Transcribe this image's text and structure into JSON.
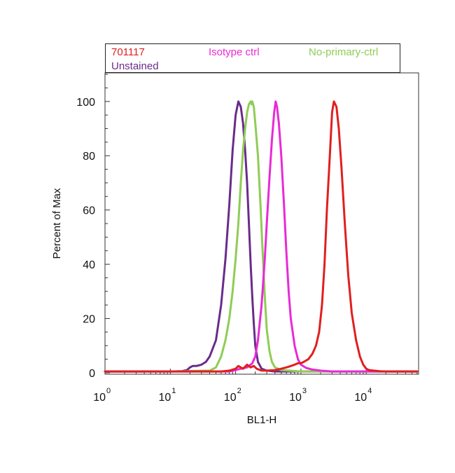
{
  "chart_data": {
    "type": "line",
    "title": "",
    "xlabel": "BL1-H",
    "ylabel": "Percent of Max",
    "x_scale": "log",
    "xlim": [
      1,
      60000
    ],
    "ylim": [
      0,
      110
    ],
    "grid": false,
    "legend_placement": "top",
    "x_ticks": [
      {
        "value": 1,
        "base": "10",
        "exp": "0"
      },
      {
        "value": 10,
        "base": "10",
        "exp": "1"
      },
      {
        "value": 100,
        "base": "10",
        "exp": "2"
      },
      {
        "value": 1000,
        "base": "10",
        "exp": "3"
      },
      {
        "value": 10000,
        "base": "10",
        "exp": "4"
      }
    ],
    "y_ticks": [
      {
        "value": 0,
        "label": "0"
      },
      {
        "value": 20,
        "label": "20"
      },
      {
        "value": 40,
        "label": "40"
      },
      {
        "value": 60,
        "label": "60"
      },
      {
        "value": 80,
        "label": "80"
      },
      {
        "value": 100,
        "label": "100"
      }
    ],
    "series": [
      {
        "name": "Unstained",
        "color": "#6a2b8c",
        "x": [
          1,
          10,
          15,
          18,
          20,
          22,
          25,
          30,
          35,
          40,
          50,
          60,
          70,
          80,
          90,
          100,
          110,
          115,
          120,
          130,
          140,
          150,
          160,
          170,
          180,
          190,
          200,
          220,
          250,
          300,
          400,
          1000,
          10000,
          60000
        ],
        "y": [
          0.5,
          0.5,
          0.6,
          1,
          2,
          2.5,
          2.5,
          3,
          4,
          6,
          12,
          25,
          42,
          62,
          82,
          95,
          100,
          99,
          98,
          92,
          82,
          70,
          55,
          40,
          28,
          18,
          10,
          4,
          1.5,
          0.8,
          0.5,
          0.5,
          0.5,
          0.5
        ]
      },
      {
        "name": "No-primary-ctrl",
        "color": "#8fcc55",
        "x": [
          1,
          10,
          40,
          50,
          60,
          70,
          80,
          90,
          100,
          110,
          120,
          130,
          140,
          150,
          160,
          170,
          175,
          180,
          190,
          200,
          220,
          240,
          260,
          280,
          300,
          330,
          360,
          400,
          500,
          1000,
          10000,
          60000
        ],
        "y": [
          0.5,
          0.5,
          0.8,
          2,
          6,
          12,
          20,
          30,
          42,
          55,
          70,
          82,
          90,
          96,
          99,
          100,
          99,
          100,
          98,
          92,
          80,
          62,
          44,
          28,
          16,
          8,
          4,
          2,
          1,
          0.5,
          0.5,
          0.5
        ]
      },
      {
        "name": "Isotype ctrl",
        "color": "#e82ad6",
        "x": [
          1,
          10,
          80,
          100,
          120,
          150,
          180,
          200,
          220,
          250,
          280,
          300,
          330,
          360,
          390,
          410,
          430,
          460,
          500,
          550,
          600,
          650,
          700,
          800,
          900,
          1000,
          1200,
          1500,
          2000,
          3000,
          60000
        ],
        "y": [
          0.5,
          0.5,
          0.5,
          1,
          1.5,
          2,
          3.5,
          6,
          12,
          25,
          42,
          55,
          72,
          86,
          96,
          100,
          98,
          92,
          80,
          62,
          44,
          30,
          20,
          10,
          5,
          3,
          1.8,
          1.2,
          0.8,
          0.5,
          0.5
        ]
      },
      {
        "name": "701117",
        "color": "#e01f1f",
        "x": [
          1,
          10,
          60,
          80,
          100,
          110,
          130,
          150,
          170,
          190,
          210,
          250,
          300,
          400,
          500,
          600,
          700,
          800,
          900,
          1000,
          1100,
          1300,
          1500,
          1700,
          1900,
          2100,
          2300,
          2500,
          2800,
          3000,
          3200,
          3500,
          3800,
          4200,
          4700,
          5300,
          6000,
          7000,
          8000,
          9000,
          10000,
          11000,
          13000,
          16000,
          20000,
          60000
        ],
        "y": [
          0.5,
          0.5,
          0.5,
          0.8,
          1.5,
          2.5,
          1.5,
          3,
          2,
          2.5,
          1.5,
          0.8,
          0.8,
          1,
          1.5,
          2,
          2.5,
          3,
          3.5,
          3.5,
          4,
          5,
          7,
          10,
          15,
          25,
          40,
          60,
          82,
          96,
          100,
          98,
          90,
          75,
          55,
          36,
          22,
          12,
          6,
          3,
          1.5,
          1,
          0.8,
          0.6,
          0.5,
          0.5
        ]
      }
    ]
  }
}
